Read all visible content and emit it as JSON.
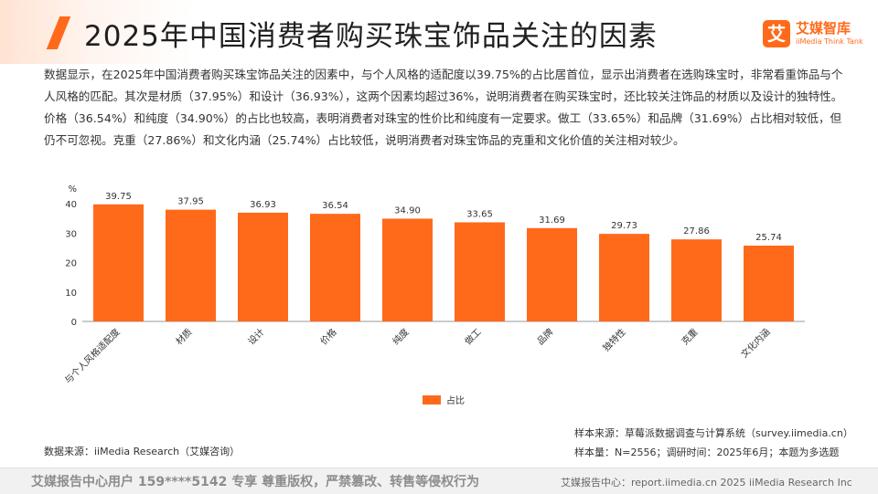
{
  "header": {
    "title": "2025年中国消费者购买珠宝饰品关注的因素",
    "logo_mark": "艾",
    "logo_cn": "艾媒智库",
    "logo_en": "iiMedia Think Tank"
  },
  "description": "数据显示，在2025年中国消费者购买珠宝饰品关注的因素中，与个人风格的适配度以39.75%的占比居首位，显示出消费者在选购珠宝时，非常看重饰品与个人风格的匹配。其次是材质（37.95%）和设计（36.93%），这两个因素均超过36%，说明消费者在购买珠宝时，还比较关注饰品的材质以及设计的独特性。价格（36.54%）和纯度（34.90%）的占比也较高，表明消费者对珠宝的性价比和纯度有一定要求。做工（33.65%）和品牌（31.69%）占比相对较低，但仍不可忽视。克重（27.86%）和文化内涵（25.74%）占比较低，说明消费者对珠宝饰品的克重和文化价值的关注相对较少。",
  "chart_data": {
    "type": "bar",
    "categories": [
      "与个人风格适配度",
      "材质",
      "设计",
      "价格",
      "纯度",
      "做工",
      "品牌",
      "独特性",
      "克重",
      "文化内涵"
    ],
    "series": [
      {
        "name": "占比",
        "values": [
          39.75,
          37.95,
          36.93,
          36.54,
          34.9,
          33.65,
          31.69,
          29.73,
          27.86,
          25.74
        ]
      }
    ],
    "value_labels": [
      "39.75",
      "37.95",
      "36.93",
      "36.54",
      "34.90",
      "33.65",
      "31.69",
      "29.73",
      "27.86",
      "25.74"
    ],
    "unit": "%",
    "yticks": [
      0,
      10,
      20,
      30,
      40
    ],
    "ylim": [
      0,
      40
    ],
    "bar_color": "#ff6a1a",
    "legend_position": "bottom-center",
    "grid": false
  },
  "source": "数据来源：iiMedia Research（艾媒咨询）",
  "notes": {
    "sample_source": "样本来源：草莓派数据调查与计算系统（survey.iimedia.cn）",
    "sample_info": "样本量：N=2556；调研时间：2025年6月；本题为多选题"
  },
  "footer": {
    "left": "艾媒报告中心用户 159****5142 专享 尊重版权，严禁篡改、转售等侵权行为",
    "right": "艾媒报告中心：report.iimedia.cn 2025 iiMedia Research Inc"
  },
  "colors": {
    "accent": "#ff6a1a"
  }
}
